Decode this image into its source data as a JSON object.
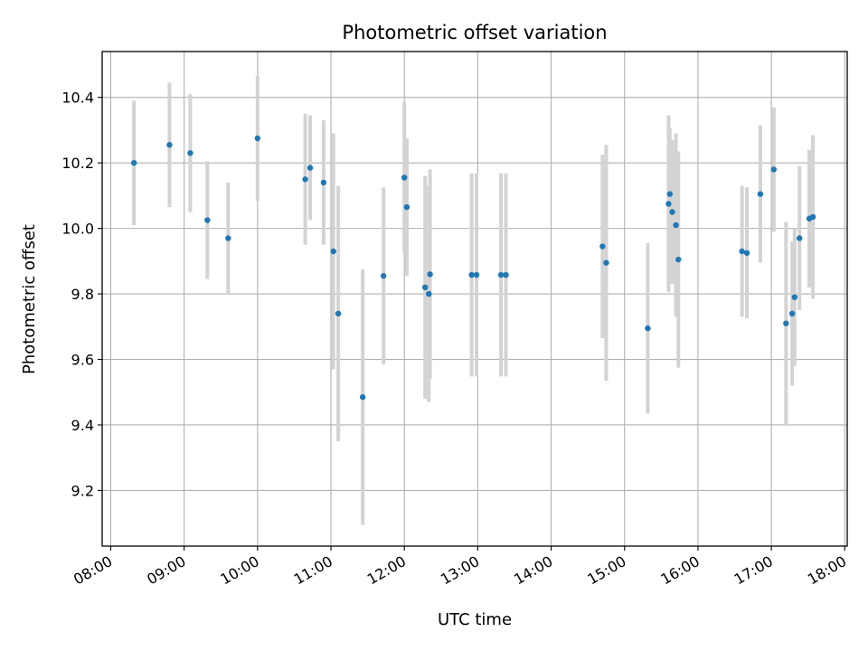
{
  "chart_data": {
    "type": "scatter",
    "title": "Photometric offset variation",
    "xlabel": "UTC time",
    "ylabel": "Photometric offset",
    "x_ticks": [
      "08:00",
      "09:00",
      "10:00",
      "11:00",
      "12:00",
      "13:00",
      "14:00",
      "15:00",
      "16:00",
      "17:00",
      "18:00"
    ],
    "y_ticks": [
      "9.2",
      "9.4",
      "9.6",
      "9.8",
      "10.0",
      "10.2",
      "10.4"
    ],
    "xlim": [
      "07:53",
      "18:02"
    ],
    "ylim": [
      9.03,
      10.54
    ],
    "grid": true,
    "colors": {
      "point": "#1f77b4",
      "errorbar": "#d3d3d3",
      "grid": "#b0b0b0"
    },
    "series": [
      {
        "points": [
          {
            "x": "08:19",
            "y": 10.2,
            "err": 0.19
          },
          {
            "x": "08:48",
            "y": 10.255,
            "err": 0.19
          },
          {
            "x": "09:05",
            "y": 10.23,
            "err": 0.18
          },
          {
            "x": "09:19",
            "y": 10.025,
            "err": 0.18
          },
          {
            "x": "09:36",
            "y": 9.97,
            "err": 0.17
          },
          {
            "x": "10:00",
            "y": 10.275,
            "err": 0.19
          },
          {
            "x": "10:39",
            "y": 10.15,
            "err": 0.2
          },
          {
            "x": "10:43",
            "y": 10.185,
            "err": 0.16
          },
          {
            "x": "10:54",
            "y": 10.14,
            "err": 0.19
          },
          {
            "x": "11:02",
            "y": 9.93,
            "err": 0.36
          },
          {
            "x": "11:06",
            "y": 9.74,
            "err": 0.39
          },
          {
            "x": "11:26",
            "y": 9.485,
            "err": 0.39
          },
          {
            "x": "11:43",
            "y": 9.855,
            "err": 0.27
          },
          {
            "x": "12:00",
            "y": 10.155,
            "err": 0.23
          },
          {
            "x": "12:02",
            "y": 10.065,
            "err": 0.21
          },
          {
            "x": "12:17",
            "y": 9.82,
            "err": 0.34
          },
          {
            "x": "12:20",
            "y": 9.8,
            "err": 0.33
          },
          {
            "x": "12:21",
            "y": 9.86,
            "err": 0.32
          },
          {
            "x": "12:55",
            "y": 9.858,
            "err": 0.31
          },
          {
            "x": "12:59",
            "y": 9.858,
            "err": 0.31
          },
          {
            "x": "13:19",
            "y": 9.858,
            "err": 0.31
          },
          {
            "x": "13:23",
            "y": 9.858,
            "err": 0.31
          },
          {
            "x": "14:42",
            "y": 9.945,
            "err": 0.28
          },
          {
            "x": "14:45",
            "y": 9.895,
            "err": 0.36
          },
          {
            "x": "15:19",
            "y": 9.695,
            "err": 0.26
          },
          {
            "x": "15:36",
            "y": 10.075,
            "err": 0.27
          },
          {
            "x": "15:37",
            "y": 10.105,
            "err": 0.2
          },
          {
            "x": "15:39",
            "y": 10.05,
            "err": 0.22
          },
          {
            "x": "15:42",
            "y": 10.01,
            "err": 0.28
          },
          {
            "x": "15:44",
            "y": 9.905,
            "err": 0.33
          },
          {
            "x": "16:36",
            "y": 9.93,
            "err": 0.2
          },
          {
            "x": "16:40",
            "y": 9.925,
            "err": 0.2
          },
          {
            "x": "16:51",
            "y": 10.105,
            "err": 0.21
          },
          {
            "x": "17:02",
            "y": 10.18,
            "err": 0.19
          },
          {
            "x": "17:12",
            "y": 9.71,
            "err": 0.31
          },
          {
            "x": "17:17",
            "y": 9.74,
            "err": 0.22
          },
          {
            "x": "17:19",
            "y": 9.79,
            "err": 0.21
          },
          {
            "x": "17:23",
            "y": 9.97,
            "err": 0.22
          },
          {
            "x": "17:31",
            "y": 10.03,
            "err": 0.21
          },
          {
            "x": "17:34",
            "y": 10.035,
            "err": 0.25
          }
        ]
      }
    ]
  }
}
